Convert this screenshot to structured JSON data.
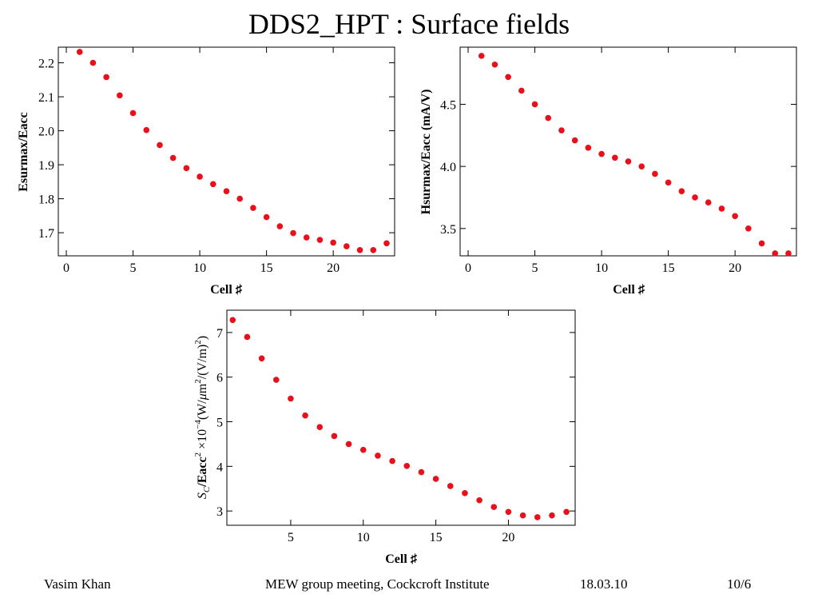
{
  "slide": {
    "title": "DDS2_HPT : Surface fields",
    "footer": {
      "author": "Vasim Khan",
      "event": "MEW group meeting, Cockcroft Institute",
      "date": "18.03.10",
      "page": "10/6"
    }
  },
  "colors": {
    "marker": "#e8101a",
    "frame": "#000000"
  },
  "chart_data": [
    {
      "type": "scatter",
      "xlabel": "Cell ♯",
      "ylabel": "Esurmax/Eacc",
      "xlim": [
        -0.6,
        24.6
      ],
      "ylim": [
        1.632,
        2.246
      ],
      "xticks": [
        0,
        5,
        10,
        15,
        20
      ],
      "xtick_labels": [
        "0",
        "5",
        "10",
        "15",
        "20"
      ],
      "yticks": [
        1.7,
        1.8,
        1.9,
        2.0,
        2.1,
        2.2
      ],
      "ytick_labels": [
        "1.7",
        "1.8",
        "1.9",
        "2.0",
        "2.1",
        "2.2"
      ],
      "grid": false,
      "series": [
        {
          "x": [
            1,
            2,
            3,
            4,
            5,
            6,
            7,
            8,
            9,
            10,
            11,
            12,
            13,
            14,
            15,
            16,
            17,
            18,
            19,
            20,
            21,
            22,
            23,
            24
          ],
          "y": [
            2.232,
            2.2,
            2.158,
            2.104,
            2.052,
            2.002,
            1.958,
            1.92,
            1.89,
            1.865,
            1.843,
            1.822,
            1.8,
            1.773,
            1.746,
            1.719,
            1.699,
            1.686,
            1.679,
            1.671,
            1.66,
            1.649,
            1.649,
            1.669
          ]
        }
      ]
    },
    {
      "type": "scatter",
      "xlabel": "Cell ♯",
      "ylabel": "Hsurmax/Eacc (mA/V)",
      "xlim": [
        -0.6,
        24.6
      ],
      "ylim": [
        3.28,
        4.96
      ],
      "xticks": [
        0,
        5,
        10,
        15,
        20
      ],
      "xtick_labels": [
        "0",
        "5",
        "10",
        "15",
        "20"
      ],
      "yticks": [
        3.5,
        4.0,
        4.5
      ],
      "ytick_labels": [
        "3.5",
        "4.0",
        "4.5"
      ],
      "grid": false,
      "series": [
        {
          "x": [
            1,
            2,
            3,
            4,
            5,
            6,
            7,
            8,
            9,
            10,
            11,
            12,
            13,
            14,
            15,
            16,
            17,
            18,
            19,
            20,
            21,
            22,
            23,
            24
          ],
          "y": [
            4.89,
            4.82,
            4.72,
            4.61,
            4.5,
            4.39,
            4.29,
            4.21,
            4.15,
            4.1,
            4.07,
            4.04,
            4.0,
            3.94,
            3.87,
            3.8,
            3.75,
            3.71,
            3.66,
            3.6,
            3.5,
            3.38,
            3.3,
            3.3
          ]
        }
      ]
    },
    {
      "type": "scatter",
      "xlabel": "Cell ♯",
      "ylabel": "S_C/Eacc^2 ×10^-4 (W/μm^2/(V/m)^2)",
      "ylabel_parts": {
        "s": "S",
        "c": "C",
        "eacc": "/Eacc",
        "two": "2",
        "times": " ×10",
        "exp": "−4",
        "unit": "(W/",
        "mu": "μ",
        "m": "m",
        "two_b": "2",
        "vm": "/(V/m)",
        "two_c": "2",
        "close": ")"
      },
      "xlim": [
        0.6,
        24.6
      ],
      "ylim": [
        2.68,
        7.5
      ],
      "xticks": [
        5,
        10,
        15,
        20
      ],
      "xtick_labels": [
        "5",
        "10",
        "15",
        "20"
      ],
      "yticks": [
        3,
        4,
        5,
        6,
        7
      ],
      "ytick_labels": [
        "3",
        "4",
        "5",
        "6",
        "7"
      ],
      "grid": false,
      "series": [
        {
          "x": [
            1,
            2,
            3,
            4,
            5,
            6,
            7,
            8,
            9,
            10,
            11,
            12,
            13,
            14,
            15,
            16,
            17,
            18,
            19,
            20,
            21,
            22,
            23,
            24
          ],
          "y": [
            7.28,
            6.9,
            6.42,
            5.94,
            5.52,
            5.14,
            4.88,
            4.68,
            4.5,
            4.37,
            4.24,
            4.12,
            4.01,
            3.87,
            3.72,
            3.56,
            3.4,
            3.24,
            3.09,
            2.98,
            2.9,
            2.86,
            2.9,
            2.98
          ]
        }
      ]
    }
  ]
}
